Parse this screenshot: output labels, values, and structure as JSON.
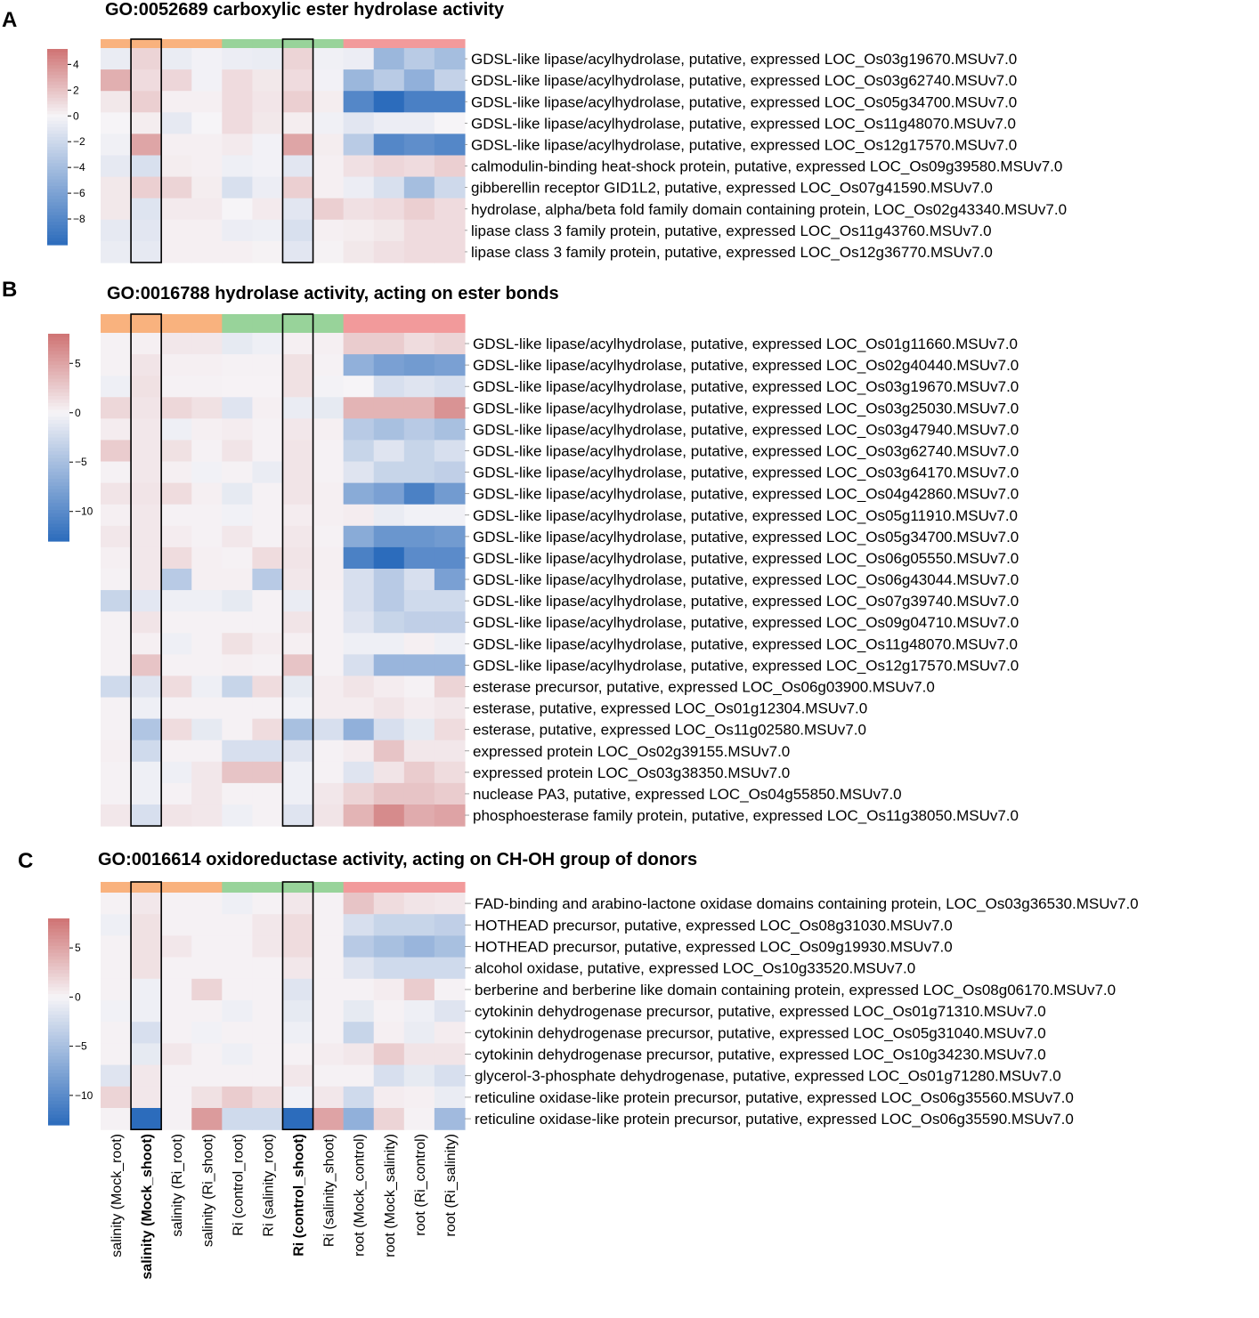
{
  "columns": [
    {
      "label": "salinity (Mock_root)",
      "group": "salinity",
      "bold": false
    },
    {
      "label": "salinity (Mock_shoot)",
      "group": "salinity",
      "bold": true
    },
    {
      "label": "salinity (Ri_root)",
      "group": "salinity",
      "bold": false
    },
    {
      "label": "salinity (Ri_shoot)",
      "group": "salinity",
      "bold": false
    },
    {
      "label": "Ri (control_root)",
      "group": "Ri",
      "bold": false
    },
    {
      "label": "Ri (salinity_root)",
      "group": "Ri",
      "bold": false
    },
    {
      "label": "Ri (control_shoot)",
      "group": "Ri",
      "bold": true
    },
    {
      "label": "Ri (salinity_shoot)",
      "group": "Ri",
      "bold": false
    },
    {
      "label": "root (Mock_control)",
      "group": "root",
      "bold": false
    },
    {
      "label": "root (Mock_salinity)",
      "group": "root",
      "bold": false
    },
    {
      "label": "root (Ri_control)",
      "group": "root",
      "bold": false
    },
    {
      "label": "root (Ri_salinity)",
      "group": "root",
      "bold": false
    }
  ],
  "group_colors": {
    "salinity": "#f9b27e",
    "Ri": "#98d39a",
    "root": "#f29a9b"
  },
  "colormap": {
    "low": "#2c6cbc",
    "mid": "#f6f4f7",
    "high": "#cf7373"
  },
  "highlight_columns": [
    1,
    6
  ],
  "chart_data": [
    {
      "panel": "A",
      "type": "heatmap",
      "title": "GO:0052689 carboxylic ester hydrolase activity",
      "vmin": -10,
      "vmax": 5.2,
      "ticks": [
        4,
        2,
        0,
        -2,
        -4,
        -6,
        -8
      ],
      "tick_labels": [
        "4",
        "2",
        "0",
        "−2",
        "−4",
        "−6",
        "−8"
      ],
      "rows": [
        "GDSL-like lipase/acylhydrolase, putative, expressed LOC_Os03g19670.MSUv7.0",
        "GDSL-like lipase/acylhydrolase, putative, expressed LOC_Os03g62740.MSUv7.0",
        "GDSL-like lipase/acylhydrolase, putative, expressed LOC_Os05g34700.MSUv7.0",
        "GDSL-like lipase/acylhydrolase, putative, expressed LOC_Os11g48070.MSUv7.0",
        "GDSL-like lipase/acylhydrolase, putative, expressed LOC_Os12g17570.MSUv7.0",
        "calmodulin-binding heat-shock protein, putative, expressed LOC_Os09g39580.MSUv7.0",
        "gibberellin receptor GID1L2, putative, expressed LOC_Os07g41590.MSUv7.0",
        "hydrolase, alpha/beta fold family domain containing protein, LOC_Os02g43340.MSUv7.0",
        "lipase class 3 family protein, putative, expressed LOC_Os11g43760.MSUv7.0",
        "lipase class 3 family protein, putative, expressed LOC_Os12g36770.MSUv7.0"
      ],
      "values": [
        [
          -0.6,
          1.3,
          -0.6,
          -0.2,
          -0.5,
          -0.6,
          1.3,
          -0.3,
          -0.5,
          -4.5,
          -3.0,
          -4.0
        ],
        [
          2.8,
          1.0,
          1.2,
          -0.2,
          1.0,
          0.5,
          1.0,
          -0.2,
          -4.5,
          -3.0,
          -5.0,
          -2.5
        ],
        [
          0.5,
          1.5,
          0.2,
          0.2,
          1.0,
          0.6,
          1.5,
          0.3,
          -8.0,
          -10.0,
          -8.5,
          -8.5
        ],
        [
          0.0,
          0.3,
          -0.8,
          0.0,
          1.0,
          0.5,
          0.3,
          -0.3,
          -1.0,
          -0.5,
          -0.5,
          0.0
        ],
        [
          -0.3,
          3.2,
          0.2,
          0.2,
          0.4,
          -0.2,
          3.2,
          0.3,
          -3.0,
          -8.0,
          -7.5,
          -8.0
        ],
        [
          -0.8,
          -1.5,
          0.3,
          0.2,
          -0.4,
          -0.2,
          -1.0,
          0.2,
          0.8,
          1.2,
          1.0,
          1.5
        ],
        [
          0.5,
          1.5,
          1.3,
          0.3,
          -1.5,
          -0.5,
          1.5,
          0.2,
          -0.5,
          -1.5,
          -4.0,
          -2.0
        ],
        [
          0.5,
          -1.2,
          0.4,
          0.4,
          0.0,
          0.4,
          -1.0,
          1.5,
          0.8,
          1.0,
          1.5,
          1.0
        ],
        [
          -0.8,
          -1.0,
          0.2,
          0.2,
          -0.5,
          -0.4,
          -1.5,
          0.2,
          0.3,
          0.5,
          1.0,
          1.0
        ],
        [
          -0.6,
          -0.8,
          0.2,
          0.2,
          0.2,
          0.1,
          -1.0,
          0.1,
          0.5,
          0.8,
          1.0,
          1.0
        ]
      ]
    },
    {
      "panel": "B",
      "type": "heatmap",
      "title": "GO:0016788 hydrolase activity, acting on ester bonds",
      "vmin": -13,
      "vmax": 8,
      "ticks": [
        5,
        0,
        -5,
        -10
      ],
      "tick_labels": [
        "5",
        "0",
        "−5",
        "−10"
      ],
      "rows": [
        "GDSL-like lipase/acylhydrolase, putative, expressed LOC_Os01g11660.MSUv7.0",
        "GDSL-like lipase/acylhydrolase, putative, expressed LOC_Os02g40440.MSUv7.0",
        "GDSL-like lipase/acylhydrolase, putative, expressed LOC_Os03g19670.MSUv7.0",
        "GDSL-like lipase/acylhydrolase, putative, expressed LOC_Os03g25030.MSUv7.0",
        "GDSL-like lipase/acylhydrolase, putative, expressed LOC_Os03g47940.MSUv7.0",
        "GDSL-like lipase/acylhydrolase, putative, expressed LOC_Os03g62740.MSUv7.0",
        "GDSL-like lipase/acylhydrolase, putative, expressed LOC_Os03g64170.MSUv7.0",
        "GDSL-like lipase/acylhydrolase, putative, expressed LOC_Os04g42860.MSUv7.0",
        "GDSL-like lipase/acylhydrolase, putative, expressed LOC_Os05g11910.MSUv7.0",
        "GDSL-like lipase/acylhydrolase, putative, expressed LOC_Os05g34700.MSUv7.0",
        "GDSL-like lipase/acylhydrolase, putative, expressed LOC_Os06g05550.MSUv7.0",
        "GDSL-like lipase/acylhydrolase, putative, expressed LOC_Os06g43044.MSUv7.0",
        "GDSL-like lipase/acylhydrolase, putative, expressed LOC_Os07g39740.MSUv7.0",
        "GDSL-like lipase/acylhydrolase, putative, expressed LOC_Os09g04710.MSUv7.0",
        "GDSL-like lipase/acylhydrolase, putative, expressed LOC_Os11g48070.MSUv7.0",
        "GDSL-like lipase/acylhydrolase, putative, expressed LOC_Os12g17570.MSUv7.0",
        "esterase precursor, putative, expressed LOC_Os06g03900.MSUv7.0",
        "esterase, putative, expressed LOC_Os01g12304.MSUv7.0",
        "esterase, putative, expressed LOC_Os11g02580.MSUv7.0",
        "expressed protein LOC_Os02g39155.MSUv7.0",
        "expressed protein LOC_Os03g38350.MSUv7.0",
        "nuclease PA3, putative, expressed LOC_Os04g55850.MSUv7.0",
        "phosphoesterase family protein, putative, expressed LOC_Os11g38050.MSUv7.0"
      ],
      "values": [
        [
          0.2,
          0.3,
          0.8,
          0.8,
          -1.0,
          -0.5,
          0.3,
          0.3,
          2.5,
          2.5,
          1.5,
          2.0
        ],
        [
          0.2,
          1.0,
          0.3,
          0.3,
          0.2,
          0.2,
          1.2,
          0.2,
          -6.5,
          -8.0,
          -8.5,
          -8.0
        ],
        [
          -0.5,
          1.2,
          0.2,
          0.2,
          0.1,
          0.1,
          1.2,
          -0.2,
          0.0,
          -2.0,
          -1.5,
          -2.0
        ],
        [
          1.8,
          1.0,
          1.8,
          1.2,
          -1.5,
          0.3,
          -0.8,
          -1.0,
          4.0,
          4.0,
          4.0,
          6.0
        ],
        [
          0.5,
          0.8,
          -0.5,
          0.3,
          0.5,
          0.2,
          0.8,
          0.3,
          -4.0,
          -5.0,
          -4.0,
          -5.0
        ],
        [
          2.5,
          0.8,
          1.2,
          0.2,
          1.0,
          0.2,
          1.0,
          0.2,
          -3.0,
          -1.5,
          -3.0,
          -2.0
        ],
        [
          0.2,
          0.8,
          0.3,
          -0.3,
          0.2,
          -0.8,
          1.0,
          0.2,
          -1.5,
          -3.0,
          -3.0,
          -3.5
        ],
        [
          1.0,
          1.0,
          1.5,
          0.3,
          -1.0,
          0.2,
          1.0,
          0.3,
          -7.0,
          -8.0,
          -11.0,
          -8.5
        ],
        [
          0.3,
          0.8,
          0.2,
          0.2,
          -0.3,
          0.2,
          0.5,
          0.3,
          0.5,
          -0.8,
          -0.3,
          -0.3
        ],
        [
          0.8,
          0.8,
          0.5,
          0.2,
          0.8,
          0.2,
          0.8,
          0.2,
          -7.0,
          -9.0,
          -9.0,
          -8.5
        ],
        [
          0.3,
          0.8,
          1.5,
          0.3,
          0.2,
          1.5,
          1.0,
          0.3,
          -11.0,
          -13.0,
          -10.0,
          -10.0
        ],
        [
          0.2,
          0.8,
          -4.0,
          0.3,
          0.3,
          -4.0,
          0.8,
          0.3,
          -2.0,
          -4.0,
          -2.0,
          -8.0
        ],
        [
          -3.0,
          -1.2,
          -0.5,
          -0.5,
          -1.0,
          0.2,
          -0.8,
          0.2,
          -2.0,
          -4.0,
          -2.5,
          -2.5
        ],
        [
          0.2,
          1.0,
          0.2,
          0.2,
          0.2,
          0.2,
          1.0,
          0.2,
          -1.5,
          -3.0,
          -3.5,
          -3.5
        ],
        [
          0.2,
          0.3,
          -0.5,
          0.2,
          1.2,
          0.5,
          0.3,
          0.2,
          -0.5,
          -0.5,
          0.3,
          -0.5
        ],
        [
          0.2,
          3.0,
          0.2,
          0.2,
          0.3,
          0.2,
          3.0,
          0.2,
          -2.0,
          -6.0,
          -6.0,
          -6.0
        ],
        [
          -2.5,
          -1.5,
          1.5,
          -0.5,
          -3.0,
          1.5,
          -1.0,
          0.5,
          1.0,
          0.5,
          0.2,
          2.0
        ],
        [
          0.2,
          -0.5,
          0.2,
          0.2,
          0.2,
          0.2,
          -0.3,
          0.5,
          0.5,
          1.0,
          0.5,
          0.8
        ],
        [
          0.2,
          -4.5,
          1.5,
          -1.0,
          0.2,
          1.5,
          -5.0,
          -2.0,
          -6.5,
          -2.0,
          -1.0,
          1.5
        ],
        [
          0.3,
          -2.5,
          0.2,
          0.2,
          -2.0,
          -2.0,
          -1.5,
          0.2,
          0.5,
          3.0,
          0.8,
          0.8
        ],
        [
          0.2,
          -0.5,
          -0.5,
          0.8,
          3.0,
          3.0,
          -0.5,
          0.2,
          -1.5,
          1.0,
          2.5,
          1.5
        ],
        [
          0.2,
          -0.5,
          0.2,
          0.8,
          0.2,
          0.2,
          -0.5,
          0.8,
          2.0,
          3.0,
          3.0,
          2.5
        ],
        [
          0.8,
          -2.0,
          1.0,
          0.8,
          -0.5,
          0.2,
          -1.5,
          1.0,
          4.0,
          6.5,
          4.5,
          5.0
        ]
      ]
    },
    {
      "panel": "C",
      "type": "heatmap",
      "title": "GO:0016614 oxidoreductase activity, acting on CH-OH group of donors",
      "vmin": -13,
      "vmax": 8,
      "ticks": [
        5,
        0,
        -5,
        -10
      ],
      "tick_labels": [
        "5",
        "0",
        "−5",
        "−10"
      ],
      "rows": [
        "FAD-binding and arabino-lactone oxidase domains containing protein, LOC_Os03g36530.MSUv7.0",
        "HOTHEAD precursor, putative, expressed LOC_Os08g31030.MSUv7.0",
        "HOTHEAD precursor, putative, expressed LOC_Os09g19930.MSUv7.0",
        "alcohol oxidase, putative, expressed LOC_Os10g33520.MSUv7.0",
        "berberine and berberine like domain containing protein, expressed LOC_Os08g06170.MSUv7.0",
        "cytokinin dehydrogenase precursor, putative, expressed LOC_Os01g71310.MSUv7.0",
        "cytokinin dehydrogenase precursor, putative, expressed LOC_Os05g31040.MSUv7.0",
        "cytokinin dehydrogenase precursor, putative, expressed LOC_Os10g34230.MSUv7.0",
        "glycerol-3-phosphate dehydrogenase, putative, expressed LOC_Os01g71280.MSUv7.0",
        "reticuline oxidase-like protein precursor, putative, expressed LOC_Os06g35560.MSUv7.0",
        "reticuline oxidase-like protein precursor, putative, expressed LOC_Os06g35590.MSUv7.0"
      ],
      "values": [
        [
          0.2,
          0.8,
          0.2,
          0.2,
          -0.5,
          0.2,
          0.8,
          0.2,
          3.0,
          1.5,
          1.0,
          0.8
        ],
        [
          -0.5,
          1.2,
          0.2,
          0.2,
          0.2,
          0.8,
          1.5,
          0.2,
          -2.0,
          -3.0,
          -3.0,
          -3.5
        ],
        [
          0.2,
          1.2,
          0.8,
          0.2,
          0.2,
          0.8,
          1.5,
          0.2,
          -4.0,
          -5.0,
          -6.0,
          -5.0
        ],
        [
          0.2,
          1.2,
          0.2,
          0.2,
          0.2,
          0.2,
          0.8,
          0.2,
          -1.5,
          -2.5,
          -2.5,
          -2.5
        ],
        [
          0.2,
          -0.5,
          0.2,
          2.0,
          0.2,
          0.2,
          -1.5,
          0.2,
          0.2,
          0.5,
          2.5,
          0.2
        ],
        [
          -0.3,
          -0.5,
          0.2,
          0.2,
          -0.5,
          0.2,
          -1.0,
          0.2,
          -1.0,
          0.2,
          -0.5,
          -1.5
        ],
        [
          0.2,
          -2.0,
          0.2,
          -0.3,
          0.2,
          0.2,
          -0.5,
          0.2,
          -3.0,
          0.3,
          -0.8,
          0.5
        ],
        [
          0.2,
          -1.0,
          0.8,
          0.2,
          -0.5,
          0.2,
          0.2,
          0.5,
          0.8,
          2.5,
          1.0,
          1.0
        ],
        [
          -1.5,
          0.8,
          0.2,
          0.2,
          0.2,
          0.2,
          0.8,
          0.2,
          0.2,
          -2.0,
          -1.0,
          -2.0
        ],
        [
          2.0,
          0.8,
          0.2,
          1.2,
          2.5,
          1.5,
          -0.3,
          0.8,
          -2.5,
          0.5,
          0.3,
          -0.8
        ],
        [
          0.2,
          -13.0,
          0.2,
          5.5,
          -2.5,
          -2.5,
          -13.0,
          5.0,
          -6.5,
          2.0,
          0.2,
          -5.5
        ]
      ]
    }
  ]
}
